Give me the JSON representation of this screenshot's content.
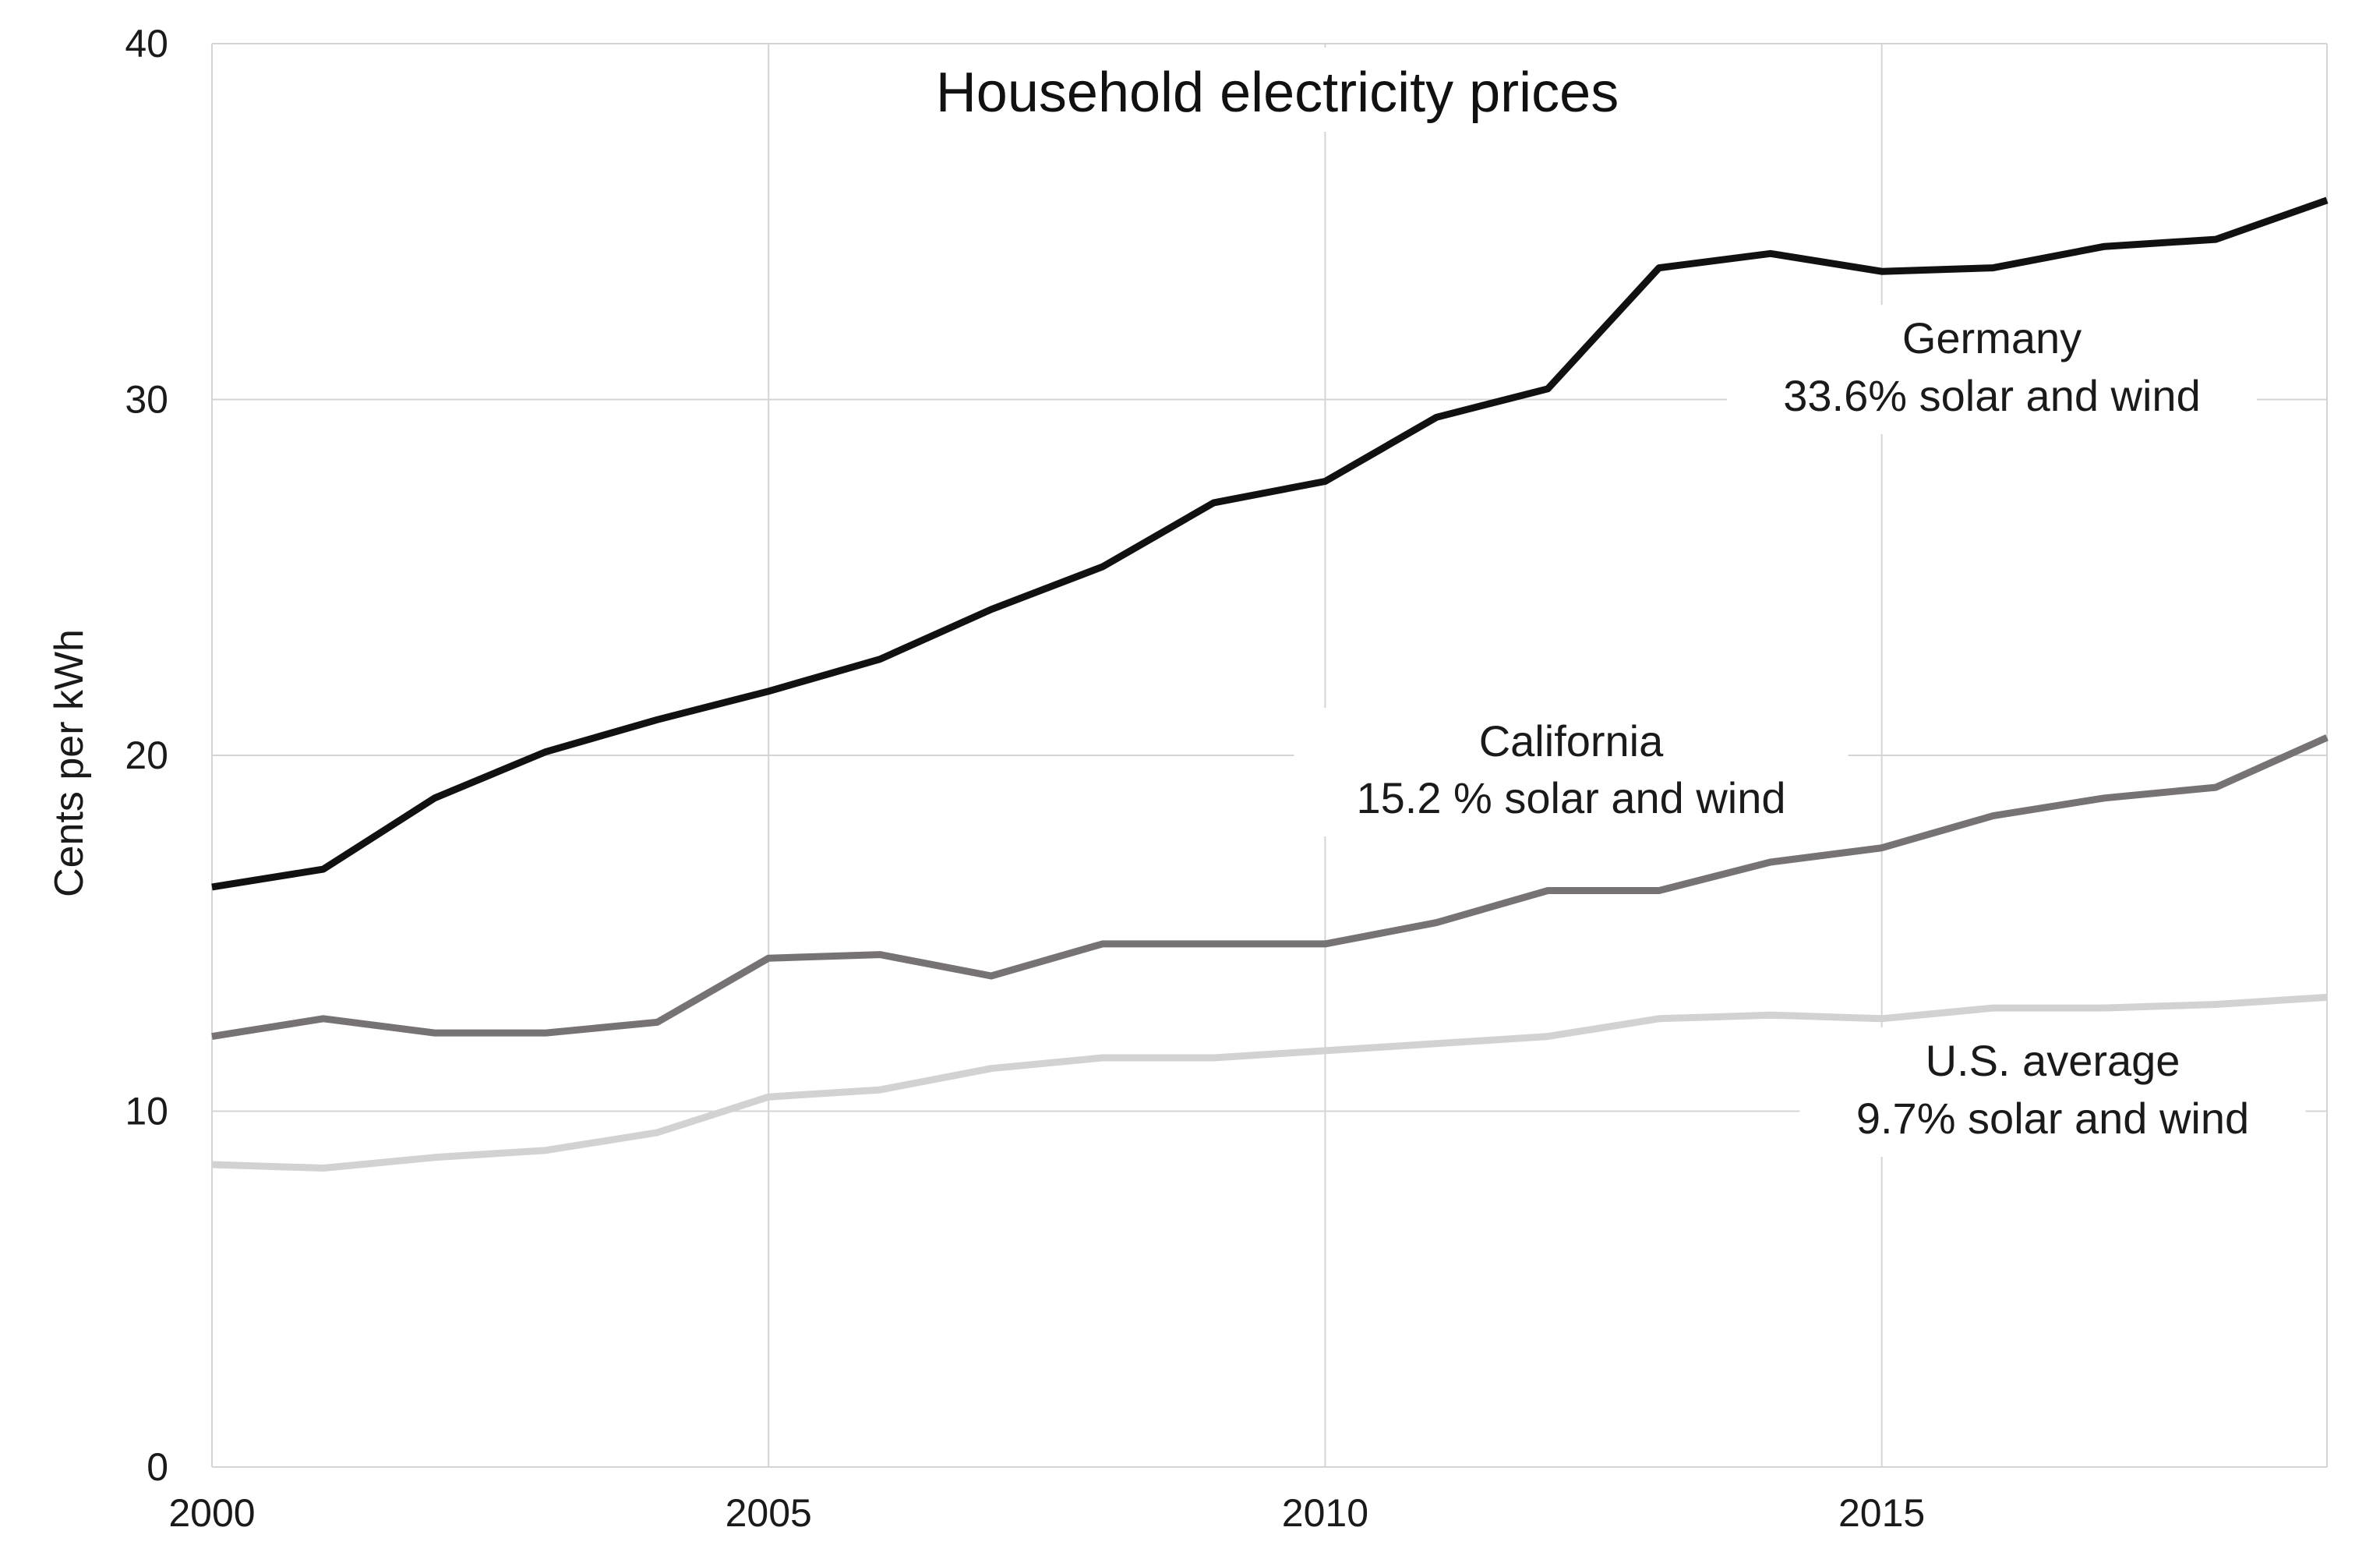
{
  "chart_data": {
    "type": "line",
    "title": "Household electricity prices",
    "xlabel": "",
    "ylabel": "Cents per kWh",
    "xlim": [
      2000,
      2019
    ],
    "ylim": [
      0,
      40
    ],
    "xticks": [
      2000,
      2005,
      2010,
      2015
    ],
    "yticks": [
      0,
      10,
      20,
      30,
      40
    ],
    "grid": true,
    "x": [
      2000,
      2001,
      2002,
      2003,
      2004,
      2005,
      2006,
      2007,
      2008,
      2009,
      2010,
      2011,
      2012,
      2013,
      2014,
      2015,
      2016,
      2017,
      2018,
      2019
    ],
    "series": [
      {
        "key": "germany",
        "color": "#111111",
        "values": [
          16.3,
          16.8,
          18.8,
          20.1,
          21.0,
          21.8,
          22.7,
          24.1,
          25.3,
          27.1,
          27.7,
          29.5,
          30.3,
          33.7,
          34.1,
          33.6,
          33.7,
          34.3,
          34.5,
          35.6
        ]
      },
      {
        "key": "california",
        "color": "#777273",
        "values": [
          12.1,
          12.6,
          12.2,
          12.2,
          12.5,
          14.3,
          14.4,
          13.8,
          14.7,
          14.7,
          14.7,
          15.3,
          16.2,
          16.2,
          17.0,
          17.4,
          18.3,
          18.8,
          19.1,
          20.5
        ]
      },
      {
        "key": "us-average",
        "color": "#d2d2d2",
        "values": [
          8.5,
          8.4,
          8.7,
          8.9,
          9.4,
          10.4,
          10.6,
          11.2,
          11.5,
          11.5,
          11.7,
          11.9,
          12.1,
          12.6,
          12.7,
          12.6,
          12.9,
          12.9,
          13.0,
          13.2
        ]
      }
    ],
    "annotations": [
      {
        "key": "germany",
        "lines": [
          "Germany",
          "33.6% solar and wind"
        ]
      },
      {
        "key": "california",
        "lines": [
          "California",
          "15.2 % solar and wind"
        ]
      },
      {
        "key": "us-average",
        "lines": [
          "U.S. average",
          "9.7% solar and wind"
        ]
      }
    ]
  }
}
